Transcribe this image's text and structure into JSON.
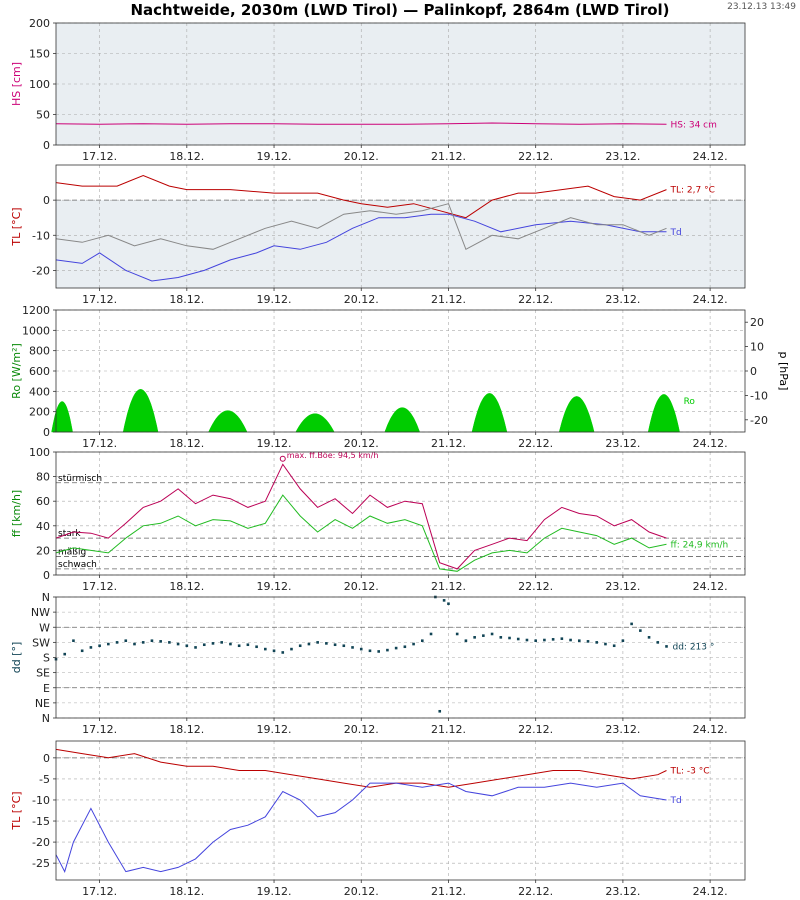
{
  "title": "Nachtweide, 2030m (LWD Tirol) — Palinkopf, 2864m (LWD Tirol)",
  "timestamp": "23.12.13 13:49",
  "days": [
    "17.12.",
    "18.12.",
    "19.12.",
    "20.12.",
    "21.12.",
    "22.12.",
    "23.12.",
    "24.12."
  ],
  "colors": {
    "hs": "#cc0077",
    "tl": "#bb0000",
    "td": "#4444dd",
    "tl_other": "#888888",
    "ro": "#00cc00",
    "boe": "#bb0055",
    "ff": "#22bb22",
    "dd": "#114455",
    "panel_bg": "#e9eef2",
    "grid": "#aaaaaa"
  },
  "chart_data": [
    {
      "id": "hs",
      "type": "line",
      "ylabel": "HS [cm]",
      "ylim": [
        0,
        200
      ],
      "yticks": [
        "0",
        "50",
        "100",
        "150",
        "200"
      ],
      "ytick_values": [
        0,
        50,
        100,
        150,
        200
      ],
      "shaded": true,
      "series": [
        {
          "name": "",
          "color": "#cc0077",
          "label": "HS: 34 cm",
          "x": [
            16.5,
            17.0,
            17.5,
            18.0,
            18.5,
            19.0,
            19.5,
            20.0,
            20.5,
            21.0,
            21.5,
            22.0,
            22.5,
            23.0,
            23.5
          ],
          "y": [
            35,
            34,
            35,
            34,
            35,
            35,
            34,
            34,
            34,
            35,
            36,
            35,
            34,
            35,
            34
          ]
        }
      ]
    },
    {
      "id": "tl",
      "type": "line",
      "ylabel": "TL [°C]",
      "ylim": [
        -25,
        10
      ],
      "yticks": [
        "-20",
        "-10",
        "0"
      ],
      "ytick_values": [
        -20,
        -10,
        0
      ],
      "shaded_below": 0,
      "dashed": [
        0
      ],
      "series": [
        {
          "name": "TL",
          "color": "#bb0000",
          "label": "TL: 2,7 °C",
          "x": [
            16.5,
            16.8,
            17.2,
            17.5,
            17.8,
            18.0,
            18.5,
            19.0,
            19.5,
            19.8,
            20.0,
            20.3,
            20.6,
            20.9,
            21.2,
            21.5,
            21.8,
            22.0,
            22.3,
            22.6,
            22.9,
            23.2,
            23.5
          ],
          "y": [
            5,
            4,
            4,
            7,
            4,
            3,
            3,
            2,
            2,
            0,
            -1,
            -2,
            -1,
            -3,
            -5,
            0,
            2,
            2,
            3,
            4,
            1,
            0,
            3
          ]
        },
        {
          "name": "Td",
          "color": "#4444dd",
          "label": "Td",
          "x": [
            16.5,
            16.8,
            17.0,
            17.3,
            17.6,
            17.9,
            18.2,
            18.5,
            18.8,
            19.0,
            19.3,
            19.6,
            19.9,
            20.2,
            20.5,
            20.8,
            21.0,
            21.3,
            21.6,
            22.0,
            22.4,
            22.8,
            23.2,
            23.5
          ],
          "y": [
            -17,
            -18,
            -15,
            -20,
            -23,
            -22,
            -20,
            -17,
            -15,
            -13,
            -14,
            -12,
            -8,
            -5,
            -5,
            -4,
            -4,
            -6,
            -9,
            -7,
            -6,
            -7,
            -9,
            -9
          ]
        },
        {
          "name": "",
          "color": "#888888",
          "label": "",
          "x": [
            16.5,
            16.8,
            17.1,
            17.4,
            17.7,
            18.0,
            18.3,
            18.6,
            18.9,
            19.2,
            19.5,
            19.8,
            20.1,
            20.4,
            20.7,
            21.0,
            21.2,
            21.5,
            21.8,
            22.1,
            22.4,
            22.7,
            23.0,
            23.3,
            23.5
          ],
          "y": [
            -11,
            -12,
            -10,
            -13,
            -11,
            -13,
            -14,
            -11,
            -8,
            -6,
            -8,
            -4,
            -3,
            -4,
            -3,
            -1,
            -14,
            -10,
            -11,
            -8,
            -5,
            -7,
            -7,
            -10,
            -8
          ]
        }
      ]
    },
    {
      "id": "ro",
      "type": "area",
      "ylabel": "Ro [W/m²]",
      "ylabel_right": "p [hPa]",
      "ylim": [
        0,
        1200
      ],
      "yticks": [
        "0",
        "200",
        "400",
        "600",
        "800",
        "1000",
        "1200"
      ],
      "ytick_values": [
        0,
        200,
        400,
        600,
        800,
        1000,
        1200
      ],
      "yticks_right": [
        "-20",
        "-10",
        "0",
        "10",
        "20"
      ],
      "ylim_right": [
        -25,
        25
      ],
      "ytick_values_right": [
        -20,
        -10,
        0,
        10,
        20
      ],
      "series": [
        {
          "name": "Ro",
          "color": "#00cc00",
          "label": "Ro",
          "peaks": [
            {
              "center": 16.57,
              "half_width": 0.12,
              "value": 300
            },
            {
              "center": 17.47,
              "half_width": 0.2,
              "value": 420
            },
            {
              "center": 18.47,
              "half_width": 0.22,
              "value": 210
            },
            {
              "center": 19.47,
              "half_width": 0.22,
              "value": 180
            },
            {
              "center": 20.47,
              "half_width": 0.2,
              "value": 240
            },
            {
              "center": 21.47,
              "half_width": 0.2,
              "value": 380
            },
            {
              "center": 22.47,
              "half_width": 0.2,
              "value": 350
            },
            {
              "center": 23.47,
              "half_width": 0.18,
              "value": 370
            }
          ]
        }
      ]
    },
    {
      "id": "ff",
      "type": "line",
      "ylabel": "ff [km/h]",
      "ylim": [
        0,
        100
      ],
      "yticks": [
        "0",
        "20",
        "40",
        "60",
        "80",
        "100"
      ],
      "ytick_values": [
        0,
        20,
        40,
        60,
        80,
        100
      ],
      "thresholds": [
        {
          "label": "stürmisch",
          "value": 75
        },
        {
          "label": "stark",
          "value": 30
        },
        {
          "label": "mäßig",
          "value": 15
        },
        {
          "label": "schwach",
          "value": 5
        }
      ],
      "annotation": {
        "label": "max. ff.Böe: 94,5 km/h",
        "x": 19.1,
        "y": 94.5
      },
      "series": [
        {
          "name": "",
          "color": "#bb0055",
          "label": "",
          "x": [
            16.5,
            16.7,
            16.9,
            17.1,
            17.3,
            17.5,
            17.7,
            17.9,
            18.1,
            18.3,
            18.5,
            18.7,
            18.9,
            19.1,
            19.3,
            19.5,
            19.7,
            19.9,
            20.1,
            20.3,
            20.5,
            20.7,
            20.9,
            21.1,
            21.3,
            21.5,
            21.7,
            21.9,
            22.1,
            22.3,
            22.5,
            22.7,
            22.9,
            23.1,
            23.3,
            23.5
          ],
          "y": [
            30,
            35,
            34,
            30,
            42,
            55,
            60,
            70,
            58,
            65,
            62,
            55,
            60,
            90,
            70,
            55,
            62,
            50,
            65,
            55,
            60,
            58,
            10,
            5,
            20,
            25,
            30,
            28,
            45,
            55,
            50,
            48,
            40,
            45,
            35,
            30
          ]
        },
        {
          "name": "",
          "color": "#22bb22",
          "label": "ff: 24,9 km/h",
          "x": [
            16.5,
            16.7,
            16.9,
            17.1,
            17.3,
            17.5,
            17.7,
            17.9,
            18.1,
            18.3,
            18.5,
            18.7,
            18.9,
            19.1,
            19.3,
            19.5,
            19.7,
            19.9,
            20.1,
            20.3,
            20.5,
            20.7,
            20.9,
            21.1,
            21.3,
            21.5,
            21.7,
            21.9,
            22.1,
            22.3,
            22.5,
            22.7,
            22.9,
            23.1,
            23.3,
            23.5
          ],
          "y": [
            18,
            22,
            20,
            18,
            30,
            40,
            42,
            48,
            40,
            45,
            44,
            38,
            42,
            65,
            48,
            35,
            45,
            38,
            48,
            42,
            45,
            40,
            5,
            3,
            12,
            18,
            20,
            18,
            30,
            38,
            35,
            32,
            25,
            30,
            22,
            25
          ]
        }
      ]
    },
    {
      "id": "dd",
      "type": "scatter",
      "ylabel": "dd [°]",
      "ylim": [
        0,
        360
      ],
      "yticks": [
        "N",
        "NE",
        "E",
        "SE",
        "S",
        "SW",
        "W",
        "NW",
        "N"
      ],
      "ytick_values": [
        0,
        45,
        90,
        135,
        180,
        225,
        270,
        315,
        360
      ],
      "dashed": [
        90,
        270
      ],
      "series": [
        {
          "name": "",
          "color": "#114455",
          "label": "dd: 213 °",
          "x": [
            16.5,
            16.6,
            16.7,
            16.8,
            16.9,
            17.0,
            17.1,
            17.2,
            17.3,
            17.4,
            17.5,
            17.6,
            17.7,
            17.8,
            17.9,
            18.0,
            18.1,
            18.2,
            18.3,
            18.4,
            18.5,
            18.6,
            18.7,
            18.8,
            18.9,
            19.0,
            19.1,
            19.2,
            19.3,
            19.4,
            19.5,
            19.6,
            19.7,
            19.8,
            19.9,
            20.0,
            20.1,
            20.2,
            20.3,
            20.4,
            20.5,
            20.6,
            20.7,
            20.8,
            20.85,
            20.9,
            20.95,
            21.0,
            21.1,
            21.2,
            21.3,
            21.4,
            21.5,
            21.6,
            21.7,
            21.8,
            21.9,
            22.0,
            22.1,
            22.2,
            22.3,
            22.4,
            22.5,
            22.6,
            22.7,
            22.8,
            22.9,
            23.0,
            23.1,
            23.2,
            23.3,
            23.4,
            23.5
          ],
          "y": [
            175,
            190,
            230,
            200,
            210,
            215,
            220,
            225,
            230,
            220,
            225,
            230,
            228,
            225,
            220,
            215,
            210,
            218,
            222,
            225,
            220,
            215,
            218,
            212,
            205,
            200,
            195,
            205,
            215,
            220,
            225,
            222,
            218,
            215,
            210,
            205,
            200,
            198,
            202,
            208,
            212,
            220,
            230,
            250,
            360,
            20,
            350,
            340,
            250,
            230,
            240,
            245,
            250,
            240,
            238,
            235,
            232,
            230,
            232,
            234,
            236,
            232,
            230,
            228,
            225,
            220,
            215,
            230,
            280,
            260,
            240,
            225,
            213
          ]
        }
      ]
    },
    {
      "id": "tl2",
      "type": "line",
      "ylabel": "TL [°C]",
      "ylim": [
        -29,
        4
      ],
      "yticks": [
        "-25",
        "-20",
        "-15",
        "-10",
        "-5",
        "0"
      ],
      "ytick_values": [
        -25,
        -20,
        -15,
        -10,
        -5,
        0
      ],
      "dashed": [
        0
      ],
      "series": [
        {
          "name": "TL",
          "color": "#bb0000",
          "label": "TL: -3 °C",
          "x": [
            16.5,
            16.8,
            17.1,
            17.4,
            17.7,
            18.0,
            18.3,
            18.6,
            18.9,
            19.2,
            19.5,
            19.8,
            20.1,
            20.4,
            20.7,
            21.0,
            21.3,
            21.6,
            21.9,
            22.2,
            22.5,
            22.8,
            23.1,
            23.4,
            23.5
          ],
          "y": [
            2,
            1,
            0,
            1,
            -1,
            -2,
            -2,
            -3,
            -3,
            -4,
            -5,
            -6,
            -7,
            -6,
            -6,
            -7,
            -6,
            -5,
            -4,
            -3,
            -3,
            -4,
            -5,
            -4,
            -3
          ]
        },
        {
          "name": "Td",
          "color": "#4444dd",
          "label": "Td",
          "x": [
            16.5,
            16.6,
            16.7,
            16.9,
            17.1,
            17.3,
            17.5,
            17.7,
            17.9,
            18.1,
            18.3,
            18.5,
            18.7,
            18.9,
            19.1,
            19.3,
            19.5,
            19.7,
            19.9,
            20.1,
            20.4,
            20.7,
            21.0,
            21.2,
            21.5,
            21.8,
            22.1,
            22.4,
            22.7,
            23.0,
            23.2,
            23.5
          ],
          "y": [
            -23,
            -27,
            -20,
            -12,
            -20,
            -27,
            -26,
            -27,
            -26,
            -24,
            -20,
            -17,
            -16,
            -14,
            -8,
            -10,
            -14,
            -13,
            -10,
            -6,
            -6,
            -7,
            -6,
            -8,
            -9,
            -7,
            -7,
            -6,
            -7,
            -6,
            -9,
            -10
          ]
        }
      ]
    }
  ]
}
